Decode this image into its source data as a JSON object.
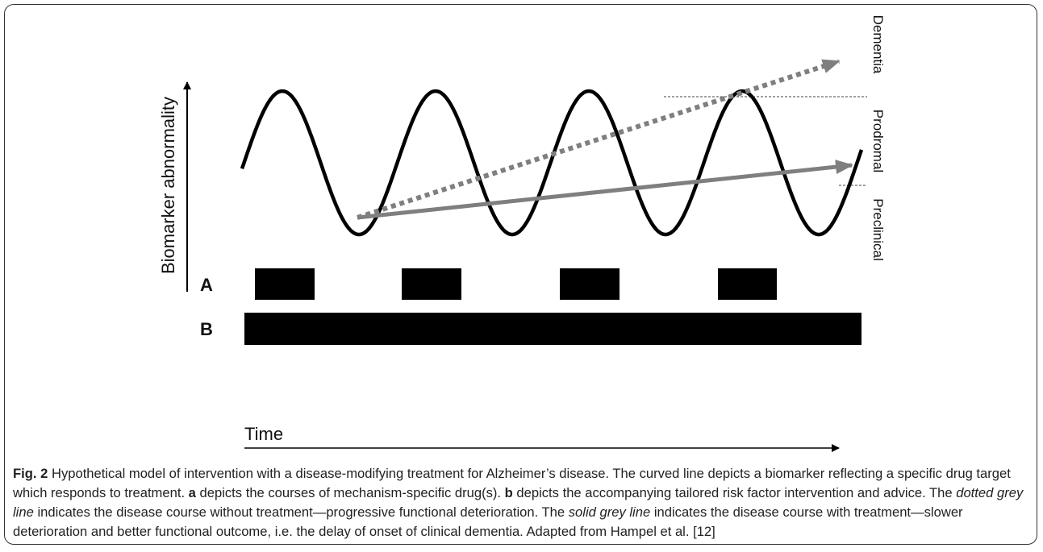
{
  "figure": {
    "y_axis_label": "Biomarker abnormality",
    "stages": [
      "Dementia",
      "Prodromal",
      "Preclinical"
    ],
    "rows": [
      "A",
      "B"
    ],
    "x_axis_label": "Time"
  },
  "caption": {
    "parts": [
      "Fig. 2",
      " Hypothetical model of intervention with a disease-modifying treatment for Alzheimer’s disease. The curved line depicts a biomarker reflecting a specific drug target which responds to treatment. ",
      "a",
      " depicts the courses of mechanism-specific drug(s). ",
      "b",
      " depicts the accompanying tailored risk factor intervention and advice. The ",
      "dotted grey line",
      " indicates the disease course without treatment—progressive functional deterioration. The ",
      "solid grey line",
      " indicates the disease course with treatment—slower deterioration and better functional outcome, i.e. the delay of onset of clinical dementia. Adapted from Hampel et al. [12]"
    ]
  }
}
